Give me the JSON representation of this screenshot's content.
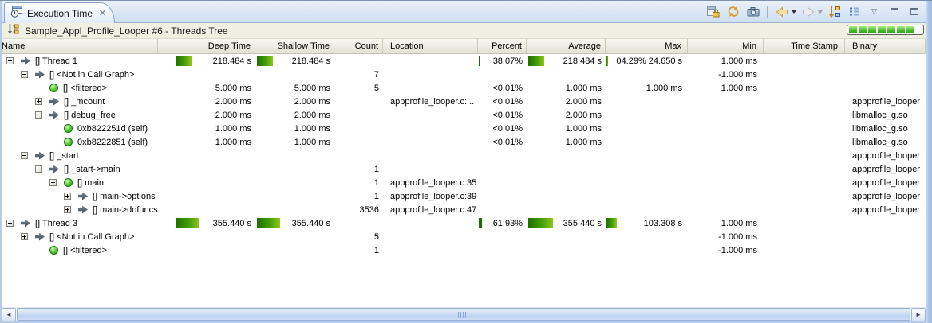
{
  "tab": {
    "title": "Execution Time"
  },
  "icons": {
    "close": "✕",
    "view_menu": "▽",
    "scroll_left": "◄",
    "scroll_right": "►"
  },
  "colors": {
    "bar_dark_green": "#1e6f00",
    "bar_light_green": "#8fc51c",
    "progress_green": "#2da215",
    "infobar_bg": "#eff0e1",
    "tabband_blue": "#cfdff1"
  },
  "info_bar": {
    "title": "Sample_Appl_Profile_Looper #6 - Threads Tree",
    "progress_segments": 7
  },
  "table": {
    "columns": [
      {
        "key": "name",
        "label": "Name"
      },
      {
        "key": "deep",
        "label": "Deep Time"
      },
      {
        "key": "shallow",
        "label": "Shallow Time"
      },
      {
        "key": "count",
        "label": "Count"
      },
      {
        "key": "location",
        "label": "Location"
      },
      {
        "key": "percent",
        "label": "Percent"
      },
      {
        "key": "average",
        "label": "Average"
      },
      {
        "key": "max",
        "label": "Max"
      },
      {
        "key": "min",
        "label": "Min"
      },
      {
        "key": "timestamp",
        "label": "Time Stamp"
      },
      {
        "key": "binary",
        "label": "Binary"
      }
    ],
    "rows": [
      {
        "level": 0,
        "expander": "minus",
        "icon": "arrow",
        "name": "[] Thread 1",
        "deep": "218.484  s",
        "shallow": "218.484  s",
        "count": "",
        "location": "",
        "percent": "38.07%",
        "average": "218.484  s",
        "max": "04.29%  24.650  s",
        "min": "1.000 ms",
        "timestamp": "",
        "binary": "",
        "bars": {
          "deep": 20,
          "shallow": 20,
          "percent": 2,
          "average": 20,
          "max": 2
        }
      },
      {
        "level": 1,
        "expander": "minus",
        "icon": "arrow",
        "name": "[] <Not in Call Graph>",
        "deep": "",
        "shallow": "",
        "count": "7",
        "location": "",
        "percent": "",
        "average": "",
        "max": "",
        "min": "-1.000 ms",
        "timestamp": "",
        "binary": ""
      },
      {
        "level": 2,
        "expander": null,
        "icon": "ball",
        "name": "[] <filtered>",
        "deep": "5.000 ms",
        "shallow": "5.000 ms",
        "count": "5",
        "location": "",
        "percent": "<0.01%",
        "average": "1.000 ms",
        "max": "1.000 ms",
        "min": "1.000 ms",
        "timestamp": "",
        "binary": ""
      },
      {
        "level": 2,
        "expander": "plus",
        "icon": "arrow",
        "name": "[] _mcount",
        "deep": "2.000 ms",
        "shallow": "2.000 ms",
        "count": "",
        "location": "appprofile_looper.c:...",
        "percent": "<0.01%",
        "average": "2.000 ms",
        "max": "",
        "min": "",
        "timestamp": "",
        "binary": "appprofile_looper"
      },
      {
        "level": 2,
        "expander": "minus",
        "icon": "arrow",
        "name": "[] debug_free",
        "deep": "2.000 ms",
        "shallow": "2.000 ms",
        "count": "",
        "location": "",
        "percent": "<0.01%",
        "average": "2.000 ms",
        "max": "",
        "min": "",
        "timestamp": "",
        "binary": "libmalloc_g.so"
      },
      {
        "level": 3,
        "expander": null,
        "icon": "ball",
        "name": "0xb822251d (self)",
        "deep": "1.000 ms",
        "shallow": "1.000 ms",
        "count": "",
        "location": "",
        "percent": "<0.01%",
        "average": "1.000 ms",
        "max": "",
        "min": "",
        "timestamp": "",
        "binary": "libmalloc_g.so"
      },
      {
        "level": 3,
        "expander": null,
        "icon": "ball",
        "name": "0xb8222851 (self)",
        "deep": "1.000 ms",
        "shallow": "1.000 ms",
        "count": "",
        "location": "",
        "percent": "<0.01%",
        "average": "1.000 ms",
        "max": "",
        "min": "",
        "timestamp": "",
        "binary": "libmalloc_g.so"
      },
      {
        "level": 1,
        "expander": "minus",
        "icon": "arrow",
        "name": "[] _start",
        "deep": "",
        "shallow": "",
        "count": "",
        "location": "",
        "percent": "",
        "average": "",
        "max": "",
        "min": "",
        "timestamp": "",
        "binary": "appprofile_looper"
      },
      {
        "level": 2,
        "expander": "minus",
        "icon": "arrow",
        "name": "[] _start->main",
        "deep": "",
        "shallow": "",
        "count": "1",
        "location": "",
        "percent": "",
        "average": "",
        "max": "",
        "min": "",
        "timestamp": "",
        "binary": "appprofile_looper"
      },
      {
        "level": 3,
        "expander": "minus",
        "icon": "ball",
        "name": "[] main",
        "deep": "",
        "shallow": "",
        "count": "1",
        "location": "appprofile_looper.c:35",
        "percent": "",
        "average": "",
        "max": "",
        "min": "",
        "timestamp": "",
        "binary": "appprofile_looper"
      },
      {
        "level": 4,
        "expander": "plus",
        "icon": "arrow",
        "name": "[] main->options",
        "deep": "",
        "shallow": "",
        "count": "1",
        "location": "appprofile_looper.c:39",
        "percent": "",
        "average": "",
        "max": "",
        "min": "",
        "timestamp": "",
        "binary": "appprofile_looper"
      },
      {
        "level": 4,
        "expander": "plus",
        "icon": "arrow",
        "name": "[] main->dofuncs",
        "deep": "",
        "shallow": "",
        "count": "3536",
        "location": "appprofile_looper.c:47",
        "percent": "",
        "average": "",
        "max": "",
        "min": "",
        "timestamp": "",
        "binary": "appprofile_looper"
      },
      {
        "level": 0,
        "expander": "minus",
        "icon": "arrow",
        "name": "[] Thread 3",
        "deep": "355.440  s",
        "shallow": "355.440  s",
        "count": "",
        "location": "",
        "percent": "61.93%",
        "average": "355.440  s",
        "max": "103.308  s",
        "min": "1.000 ms",
        "timestamp": "",
        "binary": "",
        "bars": {
          "deep": 30,
          "shallow": 29,
          "percent": 4,
          "average": 31,
          "max": 13
        }
      },
      {
        "level": 1,
        "expander": "plus",
        "icon": "arrow",
        "name": "[] <Not in Call Graph>",
        "deep": "",
        "shallow": "",
        "count": "5",
        "location": "",
        "percent": "",
        "average": "",
        "max": "",
        "min": "-1.000 ms",
        "timestamp": "",
        "binary": ""
      },
      {
        "level": 2,
        "expander": null,
        "icon": "ball",
        "name": "[] <filtered>",
        "deep": "",
        "shallow": "",
        "count": "1",
        "location": "",
        "percent": "",
        "average": "",
        "max": "",
        "min": "-1.000 ms",
        "timestamp": "",
        "binary": ""
      }
    ]
  }
}
